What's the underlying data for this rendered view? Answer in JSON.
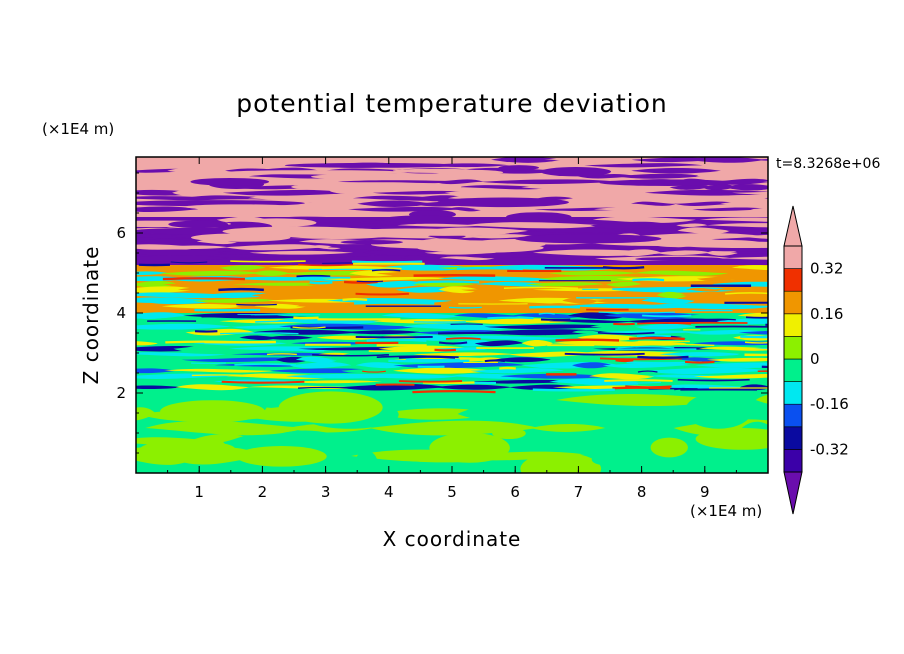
{
  "chart_data": {
    "type": "heatmap",
    "title": "potential temperature deviation",
    "xlabel": "X coordinate",
    "ylabel": "Z coordinate",
    "x_unit": "(×1E4 m)",
    "y_unit": "(×1E4 m)",
    "xlim": [
      0,
      10
    ],
    "ylim": [
      0,
      7.9
    ],
    "x_ticks": [
      "1",
      "2",
      "3",
      "4",
      "5",
      "6",
      "7",
      "8",
      "9"
    ],
    "y_ticks": [
      "2",
      "4",
      "6"
    ],
    "timestamp": "t=8.3268e+06",
    "colorbar": {
      "levels": [
        -0.4,
        -0.32,
        -0.24,
        -0.16,
        -0.08,
        0,
        0.08,
        0.16,
        0.24,
        0.32,
        0.4
      ],
      "colors": [
        "#6a0dad",
        "#3b00a8",
        "#0a0aa0",
        "#0a50f0",
        "#00e8f0",
        "#00f08c",
        "#8cf000",
        "#f0f000",
        "#f09600",
        "#f03000",
        "#f0a8a8"
      ],
      "tick_labels": [
        "0.32",
        "0.16",
        "0",
        "-0.16",
        "-0.32"
      ],
      "tick_values": [
        0.32,
        0.16,
        0,
        -0.16,
        -0.32
      ],
      "extend": "both"
    },
    "layers": [
      {
        "z_range": [
          6.4,
          7.9
        ],
        "dominant": [
          "#f0a8a8",
          "#6a0dad"
        ]
      },
      {
        "z_range": [
          5.2,
          6.4
        ],
        "dominant": [
          "#6a0dad",
          "#f0a8a8"
        ]
      },
      {
        "z_range": [
          4.0,
          5.2
        ],
        "dominant": [
          "#f09600",
          "#f0f000",
          "#8cf000",
          "#00e8f0"
        ]
      },
      {
        "z_range": [
          2.0,
          4.0
        ],
        "dominant": [
          "#00f08c",
          "#00e8f0",
          "#0a50f0",
          "#0a0aa0",
          "#f0f000"
        ]
      },
      {
        "z_range": [
          0.0,
          2.0
        ],
        "dominant": [
          "#00f08c",
          "#8cf000"
        ]
      }
    ]
  }
}
